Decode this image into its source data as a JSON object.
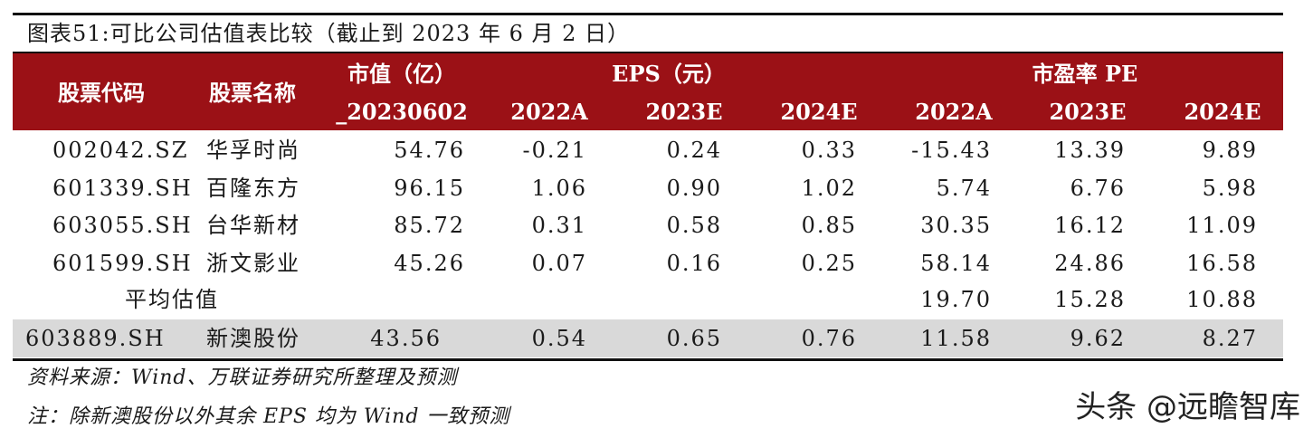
{
  "title": "图表51:可比公司估值表比较（截止到 2023 年 6 月 2 日）",
  "header": {
    "code": "股票代码",
    "name": "股票名称",
    "mktcap_line1": "市值（亿）",
    "mktcap_line2": "_20230602",
    "eps_group": "EPS（元）",
    "pe_group": "市盈率 PE",
    "eps_2022": "2022A",
    "eps_2023": "2023E",
    "eps_2024": "2024E",
    "pe_2022": "2022A",
    "pe_2023": "2023E",
    "pe_2024": "2024E"
  },
  "rows": [
    {
      "code": "002042.SZ",
      "name": "华孚时尚",
      "mktcap": "54.76",
      "eps_2022": "-0.21",
      "eps_2023": "0.24",
      "eps_2024": "0.33",
      "pe_2022": "-15.43",
      "pe_2023": "13.39",
      "pe_2024": "9.89"
    },
    {
      "code": "601339.SH",
      "name": "百隆东方",
      "mktcap": "96.15",
      "eps_2022": "1.06",
      "eps_2023": "0.90",
      "eps_2024": "1.02",
      "pe_2022": "5.74",
      "pe_2023": "6.76",
      "pe_2024": "5.98"
    },
    {
      "code": "603055.SH",
      "name": "台华新材",
      "mktcap": "85.72",
      "eps_2022": "0.31",
      "eps_2023": "0.58",
      "eps_2024": "0.85",
      "pe_2022": "30.35",
      "pe_2023": "16.12",
      "pe_2024": "11.09"
    },
    {
      "code": "601599.SH",
      "name": "浙文影业",
      "mktcap": "45.26",
      "eps_2022": "0.07",
      "eps_2023": "0.16",
      "eps_2024": "0.25",
      "pe_2022": "58.14",
      "pe_2023": "24.86",
      "pe_2024": "16.58"
    }
  ],
  "average": {
    "label": "平均估值",
    "pe_2022": "19.70",
    "pe_2023": "15.28",
    "pe_2024": "10.88"
  },
  "benchmark": {
    "code": "603889.SH",
    "name": "新澳股份",
    "mktcap": "43.56",
    "eps_2022": "0.54",
    "eps_2023": "0.65",
    "eps_2024": "0.76",
    "pe_2022": "11.58",
    "pe_2023": "9.62",
    "pe_2024": "8.27"
  },
  "source_note": "资料来源：Wind、万联证券研究所整理及预测",
  "footnote": "注：除新澳股份以外其余 EPS 均为 Wind 一致预测",
  "watermark": "头条 @远瞻智库",
  "colors": {
    "header_bg": "#9b1116",
    "benchmark_bg": "#d9d9d9"
  }
}
